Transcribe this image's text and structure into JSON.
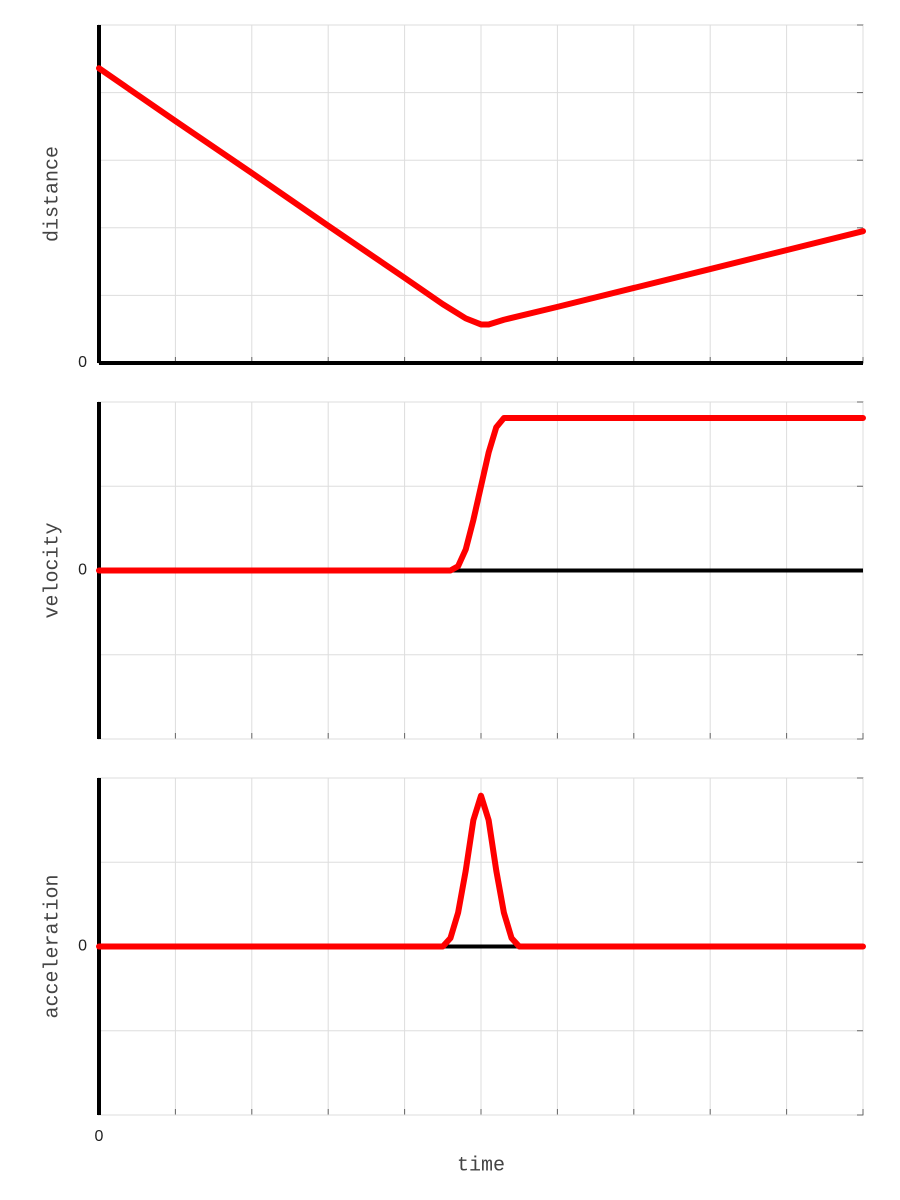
{
  "chart_data": [
    {
      "type": "line",
      "ylabel": "distance",
      "color": "#ff0000",
      "x": [
        0,
        1,
        2,
        3,
        4,
        4.5,
        4.8,
        5.0,
        5.1,
        5.3,
        6,
        7,
        8,
        9,
        10
      ],
      "values": [
        4.36,
        3.58,
        2.81,
        2.03,
        1.26,
        0.87,
        0.66,
        0.57,
        0.57,
        0.64,
        0.83,
        1.11,
        1.39,
        1.67,
        1.95
      ],
      "xlim": [
        0,
        10
      ],
      "xticks": [
        {
          "value": 0,
          "label": null
        },
        {
          "value": 1,
          "label": null
        },
        {
          "value": 2,
          "label": null
        },
        {
          "value": 3,
          "label": null
        },
        {
          "value": 4,
          "label": null
        },
        {
          "value": 5,
          "label": null
        },
        {
          "value": 6,
          "label": null
        },
        {
          "value": 7,
          "label": null
        },
        {
          "value": 8,
          "label": null
        },
        {
          "value": 9,
          "label": null
        },
        {
          "value": 10,
          "label": null
        }
      ],
      "ylim": [
        0,
        5
      ],
      "yticks": [
        0,
        {
          "value": 1,
          "label": null
        },
        {
          "value": 2,
          "label": null
        },
        {
          "value": 3,
          "label": null
        },
        {
          "value": 4,
          "label": null
        },
        {
          "value": 5,
          "label": null
        }
      ],
      "grid": true
    },
    {
      "type": "line",
      "ylabel": "velocity",
      "color": "#ff0000",
      "x": [
        0,
        4.6,
        4.7,
        4.8,
        4.9,
        5.0,
        5.1,
        5.2,
        5.3,
        10
      ],
      "values": [
        0,
        0,
        0.05,
        0.25,
        0.6,
        1.0,
        1.4,
        1.7,
        1.81,
        1.81
      ],
      "xlim": [
        0,
        10
      ],
      "xticks": [
        {
          "value": 0,
          "label": null
        },
        {
          "value": 1,
          "label": null
        },
        {
          "value": 2,
          "label": null
        },
        {
          "value": 3,
          "label": null
        },
        {
          "value": 4,
          "label": null
        },
        {
          "value": 5,
          "label": null
        },
        {
          "value": 6,
          "label": null
        },
        {
          "value": 7,
          "label": null
        },
        {
          "value": 8,
          "label": null
        },
        {
          "value": 9,
          "label": null
        },
        {
          "value": 10,
          "label": null
        }
      ],
      "ylim": [
        -2,
        2
      ],
      "yticks": [
        {
          "value": -2,
          "label": null
        },
        {
          "value": -1,
          "label": null
        },
        0,
        {
          "value": 1,
          "label": null
        },
        {
          "value": 2,
          "label": null
        }
      ],
      "grid": true
    },
    {
      "type": "line",
      "ylabel": "acceleration",
      "xlabel": "time",
      "color": "#ff0000",
      "x": [
        0,
        4.5,
        4.6,
        4.7,
        4.8,
        4.9,
        5.0,
        5.1,
        5.2,
        5.3,
        5.4,
        5.5,
        10
      ],
      "values": [
        0,
        0,
        0.1,
        0.4,
        0.9,
        1.5,
        1.79,
        1.5,
        0.9,
        0.4,
        0.1,
        0,
        0
      ],
      "xlim": [
        0,
        10
      ],
      "xticks": [
        0,
        {
          "value": 1,
          "label": null
        },
        {
          "value": 2,
          "label": null
        },
        {
          "value": 3,
          "label": null
        },
        {
          "value": 4,
          "label": null
        },
        {
          "value": 5,
          "label": null
        },
        {
          "value": 6,
          "label": null
        },
        {
          "value": 7,
          "label": null
        },
        {
          "value": 8,
          "label": null
        },
        {
          "value": 9,
          "label": null
        },
        {
          "value": 10,
          "label": null
        }
      ],
      "ylim": [
        -2,
        2
      ],
      "yticks": [
        {
          "value": -2,
          "label": null
        },
        {
          "value": -1,
          "label": null
        },
        0,
        {
          "value": 1,
          "label": null
        },
        {
          "value": 2,
          "label": null
        }
      ],
      "grid": true
    }
  ]
}
